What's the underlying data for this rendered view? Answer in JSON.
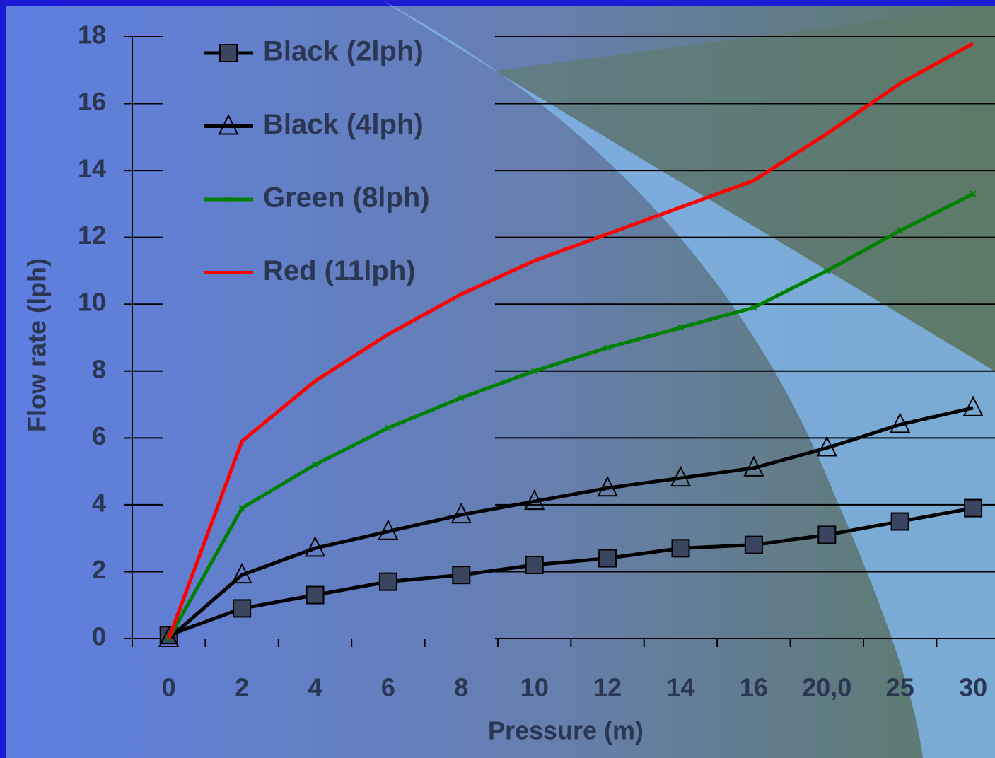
{
  "chart_data": {
    "type": "line",
    "x_label": "Pressure (m)",
    "y_label": "Flow rate (lph)",
    "categories": [
      "0",
      "2",
      "4",
      "6",
      "8",
      "10",
      "12",
      "14",
      "16",
      "20,0",
      "25",
      "30"
    ],
    "ylim": [
      0,
      18
    ],
    "yticks": [
      0,
      2,
      4,
      6,
      8,
      10,
      12,
      14,
      16,
      18
    ],
    "grid": true,
    "series": [
      {
        "name": "Black (2lph)",
        "color": "#000000",
        "marker": "square",
        "values": [
          0.1,
          0.9,
          1.3,
          1.7,
          1.9,
          2.2,
          2.4,
          2.7,
          2.8,
          3.1,
          3.5,
          3.9
        ]
      },
      {
        "name": "Black (4lph)",
        "color": "#000000",
        "marker": "triangle",
        "values": [
          0,
          1.9,
          2.7,
          3.2,
          3.7,
          4.1,
          4.5,
          4.8,
          5.1,
          5.7,
          6.4,
          6.9
        ]
      },
      {
        "name": "Green (8lph)",
        "color": "#008000",
        "marker": "x",
        "values": [
          0,
          3.9,
          5.2,
          6.3,
          7.2,
          8.0,
          8.7,
          9.3,
          9.9,
          11.0,
          12.2,
          13.3
        ]
      },
      {
        "name": "Red (11lph)",
        "color": "#ff0000",
        "marker": "none",
        "values": [
          0,
          5.9,
          7.7,
          9.1,
          10.3,
          11.3,
          12.1,
          12.9,
          13.7,
          15.1,
          16.6,
          17.8
        ]
      }
    ]
  }
}
